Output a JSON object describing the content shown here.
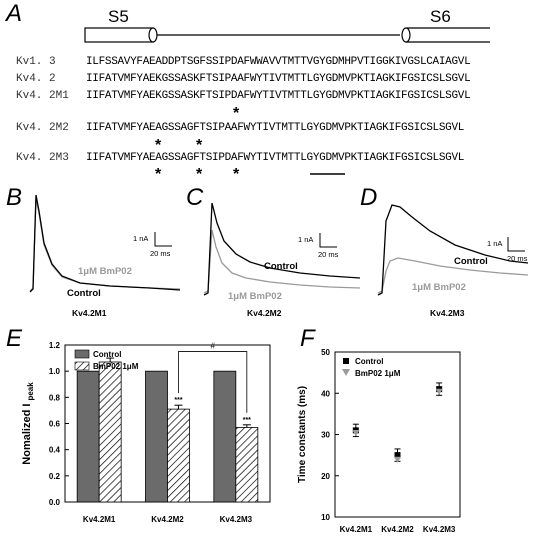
{
  "panels": {
    "A": "A",
    "B": "B",
    "C": "C",
    "D": "D",
    "E": "E",
    "F": "F"
  },
  "segments": {
    "s5": "S5",
    "s6": "S6"
  },
  "sequences": [
    {
      "label": "Kv1. 3",
      "seq": "ILFSSAVYFAEADDPTSGFSSIPDAFWWAVVTMTTVGYGDMHPVTIGGKIVGSLCAIAGVL"
    },
    {
      "label": "Kv4. 2",
      "seq": "IIFATVMFYAEKGSSASKFTSIPAAFWYTIVTMTTLGYGDMVPKTIAGKIFGSICSLSGVL"
    },
    {
      "label": "Kv4. 2M1",
      "seq": "IIFATVMFYAEKGSSASKFTSIPDAFWYTIVTMTTLGYGDMVPKTIAGKIFGSICSLSGVL"
    },
    {
      "label": "Kv4. 2M2",
      "seq": "IIFATVMFYAEAGSSAGFTSIPAAFWYTIVTMTTLGYGDMVPKTIAGKIFGSICSLSGVL"
    },
    {
      "label": "Kv4. 2M3",
      "seq": "IIFATVMFYAEAGSSAGFTSIPDAFWYTIVTMTTLGYGDMVPKTIAGKIFGSICSLSGVL"
    }
  ],
  "star_symbol": "*",
  "traces": {
    "b": {
      "scale_y": "1 nA",
      "scale_x": "20 ms",
      "control": "Control",
      "drug": "1μM BmP02",
      "title": "Kv4.2M1"
    },
    "c": {
      "scale_y": "1 nA",
      "scale_x": "20 ms",
      "control": "Control",
      "drug": "1μM BmP02",
      "title": "Kv4.2M2"
    },
    "d": {
      "scale_y": "1 nA",
      "scale_x": "20 ms",
      "control": "Control",
      "drug": "1μM BmP02",
      "title": "Kv4.2M3"
    }
  },
  "chart_data": [
    {
      "type": "bar",
      "categories": [
        "Kv4.2M1",
        "Kv4.2M2",
        "Kv4.2M3"
      ],
      "series": [
        {
          "name": "Control",
          "values": [
            1.0,
            1.0,
            1.0
          ]
        },
        {
          "name": "BmP02 1μM",
          "values": [
            1.07,
            0.71,
            0.57
          ],
          "errors": [
            0.03,
            0.03,
            0.02
          ]
        }
      ],
      "ylabel": "Nomalized I",
      "ylabel_sub": "peak",
      "ylim": [
        0.0,
        1.2
      ],
      "yticks": [
        "0.0",
        "0.2",
        "0.4",
        "0.6",
        "0.8",
        "1.0",
        "1.2"
      ],
      "significance": [
        "",
        "***",
        "***"
      ],
      "bracket_label": "#",
      "colors": {
        "control": "#6b6b6b"
      }
    },
    {
      "type": "scatter",
      "categories": [
        "Kv4.2M1",
        "Kv4.2M2",
        "Kv4.2M3"
      ],
      "series": [
        {
          "name": "Control",
          "values": [
            31.0,
            25.0,
            41.0
          ],
          "errors": [
            1.5,
            1.5,
            1.5
          ]
        },
        {
          "name": "BmP02 1μM",
          "values": [
            30.5,
            24.0,
            40.5
          ],
          "errors": [
            1.5,
            1.5,
            1.5
          ]
        }
      ],
      "ylabel": "Time constants (ms)",
      "ylim": [
        10,
        50
      ],
      "yticks": [
        "10",
        "20",
        "30",
        "40",
        "50"
      ],
      "colors": {
        "control": "#000000",
        "drug": "#9a9a9a"
      }
    }
  ]
}
